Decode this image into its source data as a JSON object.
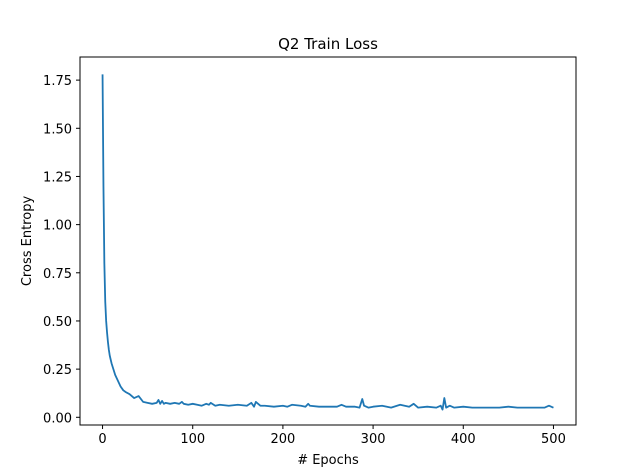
{
  "chart_data": {
    "type": "line",
    "title": "Q2 Train Loss",
    "xlabel": "# Epochs",
    "ylabel": "Cross Entropy",
    "xlim": [
      -25,
      525
    ],
    "ylim": [
      -0.04,
      1.87
    ],
    "xticks": [
      0,
      100,
      200,
      300,
      400,
      500
    ],
    "xtick_labels": [
      "0",
      "100",
      "200",
      "300",
      "400",
      "500"
    ],
    "yticks": [
      0.0,
      0.25,
      0.5,
      0.75,
      1.0,
      1.25,
      1.5,
      1.75
    ],
    "ytick_labels": [
      "0.00",
      "0.25",
      "0.50",
      "0.75",
      "1.00",
      "1.25",
      "1.50",
      "1.75"
    ],
    "grid": false,
    "legend": "none",
    "line_color": "#1f77b4",
    "series": [
      {
        "x": [
          0,
          1,
          2,
          3,
          4,
          5,
          6,
          7,
          8,
          9,
          10,
          12,
          14,
          16,
          18,
          20,
          23,
          26,
          30,
          35,
          40,
          45,
          50,
          55,
          60,
          62,
          64,
          66,
          68,
          70,
          75,
          80,
          85,
          88,
          90,
          95,
          100,
          105,
          110,
          115,
          118,
          120,
          125,
          130,
          140,
          150,
          160,
          165,
          168,
          170,
          175,
          180,
          190,
          200,
          205,
          210,
          220,
          225,
          228,
          230,
          240,
          250,
          260,
          265,
          270,
          280,
          285,
          288,
          290,
          295,
          300,
          310,
          320,
          330,
          340,
          345,
          350,
          360,
          370,
          375,
          377,
          379,
          381,
          385,
          390,
          400,
          410,
          420,
          430,
          440,
          450,
          460,
          470,
          480,
          490,
          495,
          500
        ],
        "y": [
          1.78,
          1.2,
          0.8,
          0.6,
          0.5,
          0.44,
          0.39,
          0.35,
          0.32,
          0.3,
          0.28,
          0.25,
          0.22,
          0.2,
          0.18,
          0.16,
          0.14,
          0.13,
          0.12,
          0.1,
          0.11,
          0.08,
          0.075,
          0.07,
          0.075,
          0.09,
          0.07,
          0.085,
          0.07,
          0.075,
          0.07,
          0.075,
          0.07,
          0.08,
          0.07,
          0.065,
          0.07,
          0.065,
          0.06,
          0.07,
          0.065,
          0.075,
          0.06,
          0.065,
          0.06,
          0.065,
          0.06,
          0.075,
          0.055,
          0.08,
          0.06,
          0.06,
          0.055,
          0.06,
          0.055,
          0.065,
          0.06,
          0.055,
          0.07,
          0.06,
          0.055,
          0.055,
          0.055,
          0.065,
          0.055,
          0.055,
          0.05,
          0.095,
          0.06,
          0.05,
          0.055,
          0.06,
          0.05,
          0.065,
          0.055,
          0.07,
          0.05,
          0.055,
          0.05,
          0.06,
          0.04,
          0.1,
          0.05,
          0.06,
          0.05,
          0.055,
          0.05,
          0.05,
          0.05,
          0.05,
          0.055,
          0.05,
          0.05,
          0.05,
          0.05,
          0.06,
          0.05
        ]
      }
    ]
  }
}
